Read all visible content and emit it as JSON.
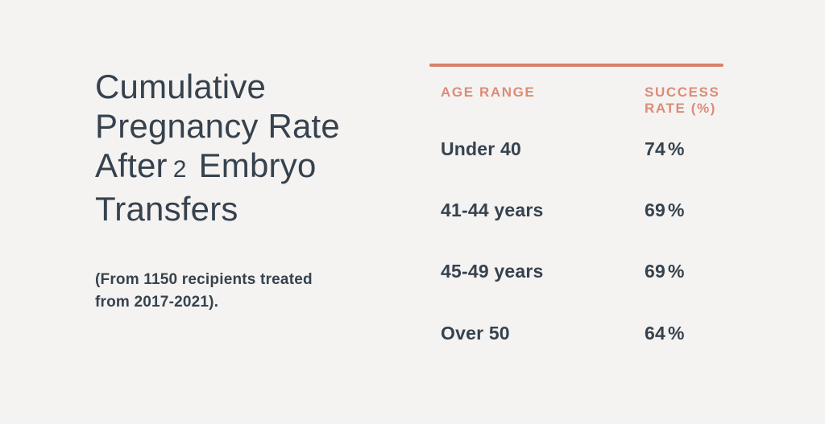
{
  "colors": {
    "background": "#f4f3f1",
    "accent_line": "#d7806b",
    "accent_text": "#dd8b77",
    "text_dark": "#36424e"
  },
  "title": {
    "line1": "Cumulative",
    "line2": "Pregnancy Rate",
    "line3_before": "After",
    "line3_number": "2",
    "line3_after": "Embryo",
    "line4": "Transfers"
  },
  "subtitle": "(From 1150 recipients treated from 2017-2021).",
  "table": {
    "header_left": "AGE RANGE",
    "header_right": "SUCCESS RATE (%)",
    "rows": [
      {
        "age_range": "Under 40",
        "value": "74",
        "unit": "%"
      },
      {
        "age_range": "41-44 years",
        "value": "69",
        "unit": "%"
      },
      {
        "age_range": "45-49 years",
        "value": "69",
        "unit": "%"
      },
      {
        "age_range": "Over 50",
        "value": "64",
        "unit": "%"
      }
    ]
  },
  "chart_data": {
    "type": "table",
    "title": "Cumulative Pregnancy Rate After 2 Embryo Transfers",
    "subtitle": "(From 1150 recipients treated from 2017-2021).",
    "columns": [
      "AGE RANGE",
      "SUCCESS RATE (%)"
    ],
    "categories": [
      "Under 40",
      "41-44 years",
      "45-49 years",
      "Over 50"
    ],
    "values": [
      74,
      69,
      69,
      64
    ]
  }
}
